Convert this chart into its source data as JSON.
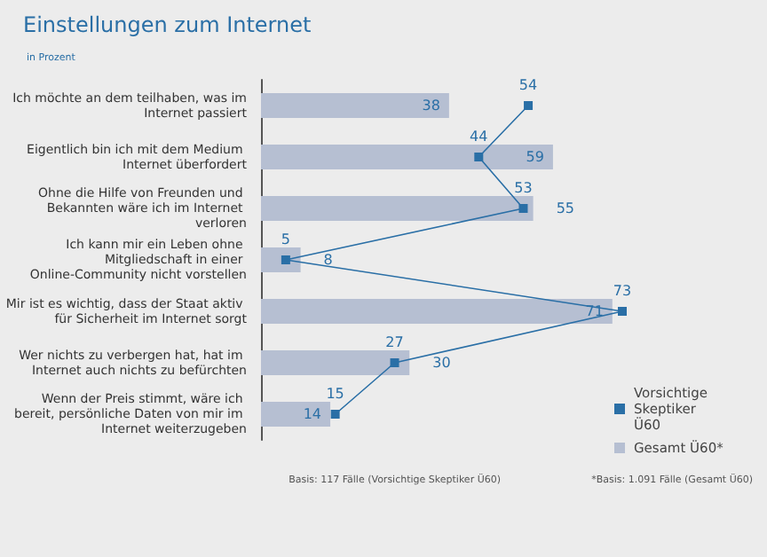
{
  "chart_data": {
    "type": "bar",
    "orientation": "horizontal",
    "title": "Einstellungen zum Internet",
    "subtitle": "in Prozent",
    "categories": [
      "Ich möchte an dem teilhaben, was im Internet passiert",
      "Eigentlich bin ich mit dem Medium Internet überfordert",
      "Ohne die Hilfe von Freunden und Bekannten wäre ich im Internet verloren",
      "Ich kann mir ein Leben ohne Mitgliedschaft in einer Online-Community nicht vorstellen",
      "Mir ist es wichtig, dass der Staat aktiv für Sicherheit im Internet sorgt",
      "Wer nichts zu verbergen hat, hat im Internet auch nichts zu befürchten",
      "Wenn der Preis stimmt, wäre ich bereit, persönliche Daten von mir im Internet weiterzugeben"
    ],
    "series": [
      {
        "name": "Gesamt Ü60*",
        "color": "#b6bfd2",
        "values": [
          38,
          59,
          55,
          8,
          71,
          30,
          14
        ]
      },
      {
        "name": "Vorsichtige Skeptiker Ü60",
        "type": "line",
        "color": "#2a6fa6",
        "values": [
          54,
          44,
          53,
          5,
          73,
          27,
          15
        ]
      }
    ],
    "tick_labels": "y",
    "data_labels": true,
    "grid": false,
    "legend": "bottom right",
    "marker": "square",
    "line_style": "solid",
    "annotations": [
      "Basis: 117 Fälle (Vorsichtige Skeptiker Ü60)",
      "*Basis: 1.091 Fälle (Gesamt Ü60)"
    ]
  }
}
